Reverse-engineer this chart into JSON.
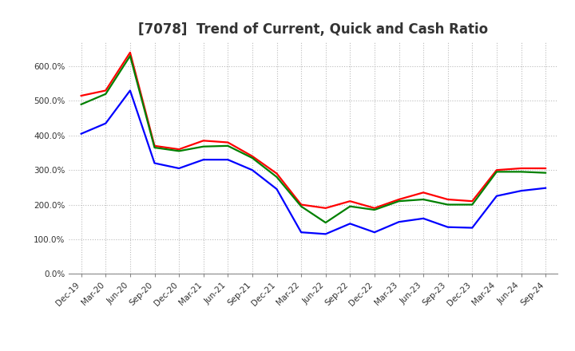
{
  "title": "[7078]  Trend of Current, Quick and Cash Ratio",
  "x_labels": [
    "Dec-19",
    "Mar-20",
    "Jun-20",
    "Sep-20",
    "Dec-20",
    "Mar-21",
    "Jun-21",
    "Sep-21",
    "Dec-21",
    "Mar-22",
    "Jun-22",
    "Sep-22",
    "Dec-22",
    "Mar-23",
    "Jun-23",
    "Sep-23",
    "Dec-23",
    "Mar-24",
    "Jun-24",
    "Sep-24"
  ],
  "current_ratio": [
    515,
    530,
    640,
    370,
    360,
    385,
    380,
    340,
    290,
    200,
    190,
    210,
    190,
    215,
    235,
    215,
    210,
    300,
    305,
    305
  ],
  "quick_ratio": [
    490,
    520,
    630,
    365,
    355,
    368,
    370,
    335,
    280,
    195,
    148,
    195,
    185,
    210,
    215,
    200,
    200,
    295,
    295,
    292
  ],
  "cash_ratio": [
    405,
    435,
    530,
    320,
    305,
    330,
    330,
    300,
    245,
    120,
    115,
    145,
    120,
    150,
    160,
    135,
    133,
    225,
    240,
    248
  ],
  "current_color": "#FF0000",
  "quick_color": "#008000",
  "cash_color": "#0000FF",
  "ylim": [
    0,
    670
  ],
  "yticks": [
    0,
    100,
    200,
    300,
    400,
    500,
    600
  ],
  "background_color": "#FFFFFF",
  "grid_color": "#BBBBBB",
  "title_fontsize": 12,
  "tick_fontsize": 7.5,
  "legend_fontsize": 9
}
